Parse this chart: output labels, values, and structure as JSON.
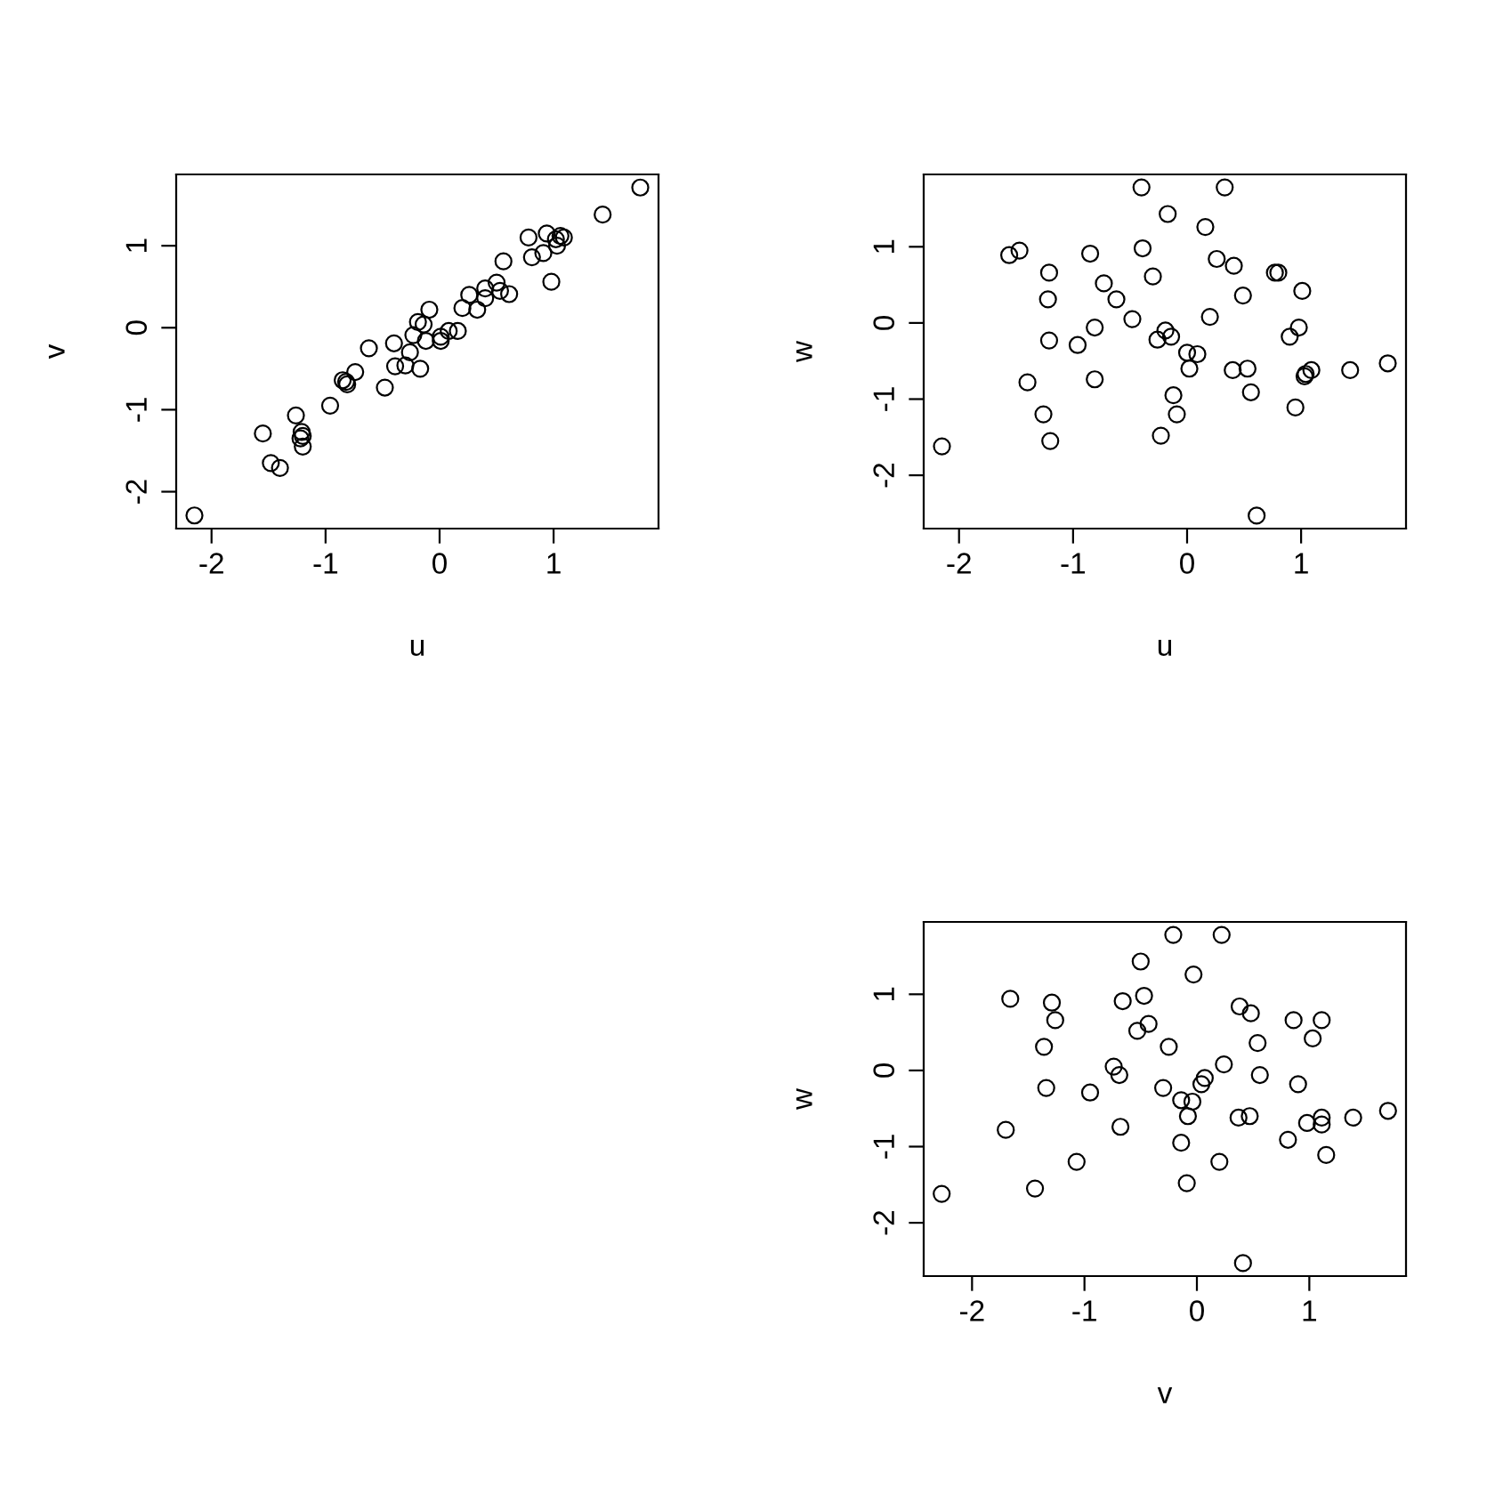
{
  "chart_data": [
    {
      "type": "scatter",
      "xlabel": "u",
      "ylabel": "v",
      "color": "#000000",
      "marker": "circle",
      "xlim": [
        -2.31,
        1.92
      ],
      "ylim": [
        -2.45,
        1.87
      ],
      "xticks": [
        -2,
        -1,
        0,
        1
      ],
      "yticks": [
        -2,
        -1,
        0,
        1
      ],
      "x": [
        1.76,
        1.43,
        0.78,
        0.94,
        1.06,
        1.02,
        1.09,
        1.03,
        0.91,
        0.81,
        0.56,
        0.98,
        0.5,
        0.4,
        0.53,
        0.61,
        0.26,
        0.4,
        0.2,
        0.33,
        -0.09,
        -0.19,
        -0.14,
        -0.23,
        -0.12,
        0.01,
        0.08,
        0.16,
        0.01,
        -0.4,
        -0.26,
        -0.62,
        -0.39,
        -0.3,
        -0.17,
        -0.74,
        -0.85,
        -0.81,
        -0.48,
        -0.96,
        -1.26,
        -1.55,
        -1.21,
        -1.22,
        -1.2,
        -1.48,
        -1.4,
        -2.15,
        -1.2,
        -0.82
      ],
      "values": [
        1.71,
        1.38,
        1.1,
        1.15,
        1.12,
        1.08,
        1.1,
        1.0,
        0.91,
        0.86,
        0.81,
        0.56,
        0.55,
        0.48,
        0.45,
        0.41,
        0.4,
        0.36,
        0.24,
        0.22,
        0.22,
        0.07,
        0.04,
        -0.09,
        -0.16,
        -0.11,
        -0.04,
        -0.04,
        -0.16,
        -0.19,
        -0.3,
        -0.25,
        -0.47,
        -0.46,
        -0.5,
        -0.54,
        -0.64,
        -0.69,
        -0.73,
        -0.95,
        -1.07,
        -1.29,
        -1.27,
        -1.35,
        -1.45,
        -1.65,
        -1.71,
        -2.29,
        -1.32,
        -0.66
      ]
    },
    {
      "type": "scatter",
      "xlabel": "u",
      "ylabel": "w",
      "color": "#000000",
      "marker": "circle",
      "xlim": [
        -2.31,
        1.92
      ],
      "ylim": [
        -2.7,
        1.95
      ],
      "xticks": [
        -2,
        -1,
        0,
        1
      ],
      "yticks": [
        -2,
        -1,
        0,
        1
      ],
      "x": [
        -0.4,
        0.33,
        -0.17,
        0.16,
        -0.39,
        -0.85,
        -1.56,
        -1.47,
        0.26,
        0.41,
        -1.21,
        -0.3,
        0.77,
        0.8,
        -0.73,
        1.01,
        -0.62,
        0.49,
        -1.22,
        -0.48,
        0.2,
        -0.81,
        -0.19,
        -0.26,
        -0.14,
        0.98,
        0.9,
        -1.21,
        -0.96,
        0.0,
        0.09,
        0.02,
        0.4,
        0.53,
        1.09,
        1.03,
        1.04,
        1.43,
        1.76,
        -0.81,
        -1.4,
        -0.12,
        0.56,
        -1.26,
        -0.09,
        0.95,
        -1.2,
        -0.23,
        -2.15,
        0.61
      ],
      "values": [
        1.78,
        1.78,
        1.43,
        1.26,
        0.98,
        0.91,
        0.89,
        0.95,
        0.84,
        0.75,
        0.66,
        0.61,
        0.66,
        0.66,
        0.52,
        0.42,
        0.31,
        0.36,
        0.31,
        0.05,
        0.08,
        -0.06,
        -0.1,
        -0.22,
        -0.18,
        -0.06,
        -0.18,
        -0.23,
        -0.29,
        -0.39,
        -0.41,
        -0.6,
        -0.62,
        -0.6,
        -0.62,
        -0.7,
        -0.67,
        -0.62,
        -0.53,
        -0.74,
        -0.78,
        -0.95,
        -0.91,
        -1.2,
        -1.2,
        -1.11,
        -1.55,
        -1.48,
        -1.62,
        -2.53
      ]
    },
    {
      "type": "scatter",
      "xlabel": "v",
      "ylabel": "w",
      "color": "#000000",
      "marker": "circle",
      "xlim": [
        -2.43,
        1.86
      ],
      "ylim": [
        -2.7,
        1.95
      ],
      "xticks": [
        -2,
        -1,
        0,
        1
      ],
      "yticks": [
        -2,
        -1,
        0,
        1
      ],
      "x": [
        -0.21,
        0.22,
        -0.5,
        -0.03,
        -1.66,
        -1.29,
        -0.66,
        -0.47,
        0.38,
        0.48,
        -1.26,
        -0.43,
        -0.53,
        0.86,
        1.11,
        1.03,
        -1.36,
        -0.25,
        0.54,
        -0.74,
        0.24,
        -0.69,
        0.07,
        0.04,
        0.56,
        0.9,
        -1.34,
        -0.3,
        -0.95,
        -0.14,
        -0.04,
        -0.08,
        0.37,
        0.47,
        1.11,
        1.11,
        0.98,
        1.39,
        1.7,
        -0.68,
        -1.7,
        -0.14,
        0.81,
        -1.07,
        0.2,
        1.15,
        -1.44,
        -0.09,
        -2.27,
        0.41
      ],
      "values": [
        1.78,
        1.78,
        1.43,
        1.26,
        0.94,
        0.89,
        0.91,
        0.98,
        0.84,
        0.75,
        0.66,
        0.61,
        0.52,
        0.66,
        0.66,
        0.42,
        0.31,
        0.31,
        0.36,
        0.05,
        0.08,
        -0.06,
        -0.1,
        -0.18,
        -0.06,
        -0.18,
        -0.23,
        -0.23,
        -0.29,
        -0.39,
        -0.41,
        -0.6,
        -0.62,
        -0.6,
        -0.62,
        -0.71,
        -0.69,
        -0.62,
        -0.53,
        -0.74,
        -0.78,
        -0.95,
        -0.91,
        -1.2,
        -1.2,
        -1.11,
        -1.55,
        -1.48,
        -1.62,
        -2.53
      ]
    }
  ]
}
